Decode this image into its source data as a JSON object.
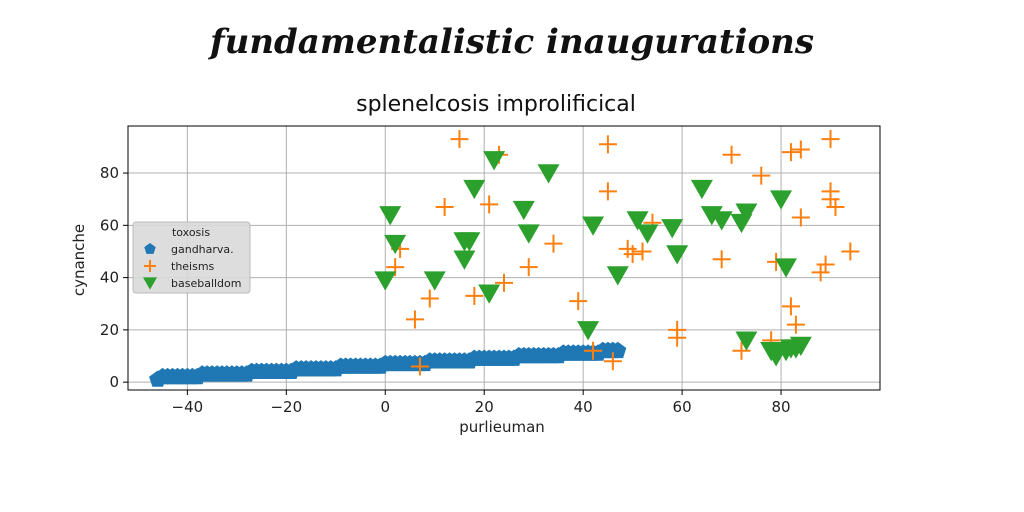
{
  "suptitle": "fundamentalistic inaugurations",
  "chart_data": {
    "type": "scatter",
    "title": "splenelcosis improlificical",
    "xlabel": "purlieuman",
    "ylabel": "cynanche",
    "xlim": [
      -52,
      100
    ],
    "ylim": [
      -3,
      98
    ],
    "xticks": [
      -40,
      -20,
      0,
      20,
      40,
      60,
      80
    ],
    "xtick_labels": [
      "−40",
      "−20",
      "0",
      "20",
      "40",
      "60",
      "80"
    ],
    "yticks": [
      0,
      20,
      40,
      60,
      80
    ],
    "ytick_labels": [
      "0",
      "20",
      "40",
      "60",
      "80"
    ],
    "grid": true,
    "legend": {
      "title": "toxosis",
      "placement": "center-left",
      "entries": [
        "gandharva.",
        "theisms",
        "baseballdom"
      ]
    },
    "series": [
      {
        "name": "gandharva.",
        "marker": "pentagon",
        "color": "#1f77b4",
        "points": [
          [
            -46,
            1
          ],
          [
            -45,
            2
          ],
          [
            -44,
            2
          ],
          [
            -43,
            2
          ],
          [
            -42,
            2
          ],
          [
            -41,
            2
          ],
          [
            -40,
            2
          ],
          [
            -39,
            2
          ],
          [
            -38,
            2
          ],
          [
            -37,
            3
          ],
          [
            -36,
            3
          ],
          [
            -35,
            3
          ],
          [
            -34,
            3
          ],
          [
            -33,
            3
          ],
          [
            -32,
            3
          ],
          [
            -31,
            3
          ],
          [
            -30,
            3
          ],
          [
            -29,
            3
          ],
          [
            -28,
            3
          ],
          [
            -27,
            4
          ],
          [
            -26,
            4
          ],
          [
            -25,
            4
          ],
          [
            -24,
            4
          ],
          [
            -23,
            4
          ],
          [
            -22,
            4
          ],
          [
            -21,
            4
          ],
          [
            -20,
            4
          ],
          [
            -19,
            4
          ],
          [
            -18,
            5
          ],
          [
            -17,
            5
          ],
          [
            -16,
            5
          ],
          [
            -15,
            5
          ],
          [
            -14,
            5
          ],
          [
            -13,
            5
          ],
          [
            -12,
            5
          ],
          [
            -11,
            5
          ],
          [
            -10,
            5
          ],
          [
            -9,
            6
          ],
          [
            -8,
            6
          ],
          [
            -7,
            6
          ],
          [
            -6,
            6
          ],
          [
            -5,
            6
          ],
          [
            -4,
            6
          ],
          [
            -3,
            6
          ],
          [
            -2,
            6
          ],
          [
            -1,
            6
          ],
          [
            0,
            7
          ],
          [
            1,
            7
          ],
          [
            2,
            7
          ],
          [
            3,
            7
          ],
          [
            4,
            7
          ],
          [
            5,
            7
          ],
          [
            6,
            7
          ],
          [
            7,
            7
          ],
          [
            8,
            7
          ],
          [
            9,
            8
          ],
          [
            10,
            8
          ],
          [
            11,
            8
          ],
          [
            12,
            8
          ],
          [
            13,
            8
          ],
          [
            14,
            8
          ],
          [
            15,
            8
          ],
          [
            16,
            8
          ],
          [
            17,
            8
          ],
          [
            18,
            9
          ],
          [
            19,
            9
          ],
          [
            20,
            9
          ],
          [
            21,
            9
          ],
          [
            22,
            9
          ],
          [
            23,
            9
          ],
          [
            24,
            9
          ],
          [
            25,
            9
          ],
          [
            26,
            9
          ],
          [
            27,
            10
          ],
          [
            28,
            10
          ],
          [
            29,
            10
          ],
          [
            30,
            10
          ],
          [
            31,
            10
          ],
          [
            32,
            10
          ],
          [
            33,
            10
          ],
          [
            34,
            10
          ],
          [
            35,
            10
          ],
          [
            36,
            11
          ],
          [
            37,
            11
          ],
          [
            38,
            11
          ],
          [
            39,
            11
          ],
          [
            40,
            11
          ],
          [
            41,
            11
          ],
          [
            42,
            11
          ],
          [
            43,
            11
          ],
          [
            44,
            12
          ],
          [
            45,
            12
          ],
          [
            46,
            12
          ],
          [
            47,
            12
          ]
        ]
      },
      {
        "name": "theisms",
        "marker": "plus",
        "color": "#ff7f0e",
        "points": [
          [
            15,
            93
          ],
          [
            45,
            91
          ],
          [
            23,
            87
          ],
          [
            70,
            87
          ],
          [
            82,
            88
          ],
          [
            84,
            89
          ],
          [
            90,
            93
          ],
          [
            76,
            79
          ],
          [
            45,
            73
          ],
          [
            90,
            73
          ],
          [
            90,
            70
          ],
          [
            91,
            67
          ],
          [
            12,
            67
          ],
          [
            21,
            68
          ],
          [
            84,
            63
          ],
          [
            54,
            61
          ],
          [
            3,
            51
          ],
          [
            49,
            51
          ],
          [
            50,
            49
          ],
          [
            52,
            50
          ],
          [
            94,
            50
          ],
          [
            34,
            53
          ],
          [
            2,
            44
          ],
          [
            29,
            44
          ],
          [
            24,
            38
          ],
          [
            18,
            33
          ],
          [
            9,
            32
          ],
          [
            39,
            31
          ],
          [
            68,
            47
          ],
          [
            79,
            46
          ],
          [
            88,
            42
          ],
          [
            89,
            45
          ],
          [
            82,
            29
          ],
          [
            83,
            22
          ],
          [
            6,
            24
          ],
          [
            59,
            20
          ],
          [
            59,
            17
          ],
          [
            42,
            12
          ],
          [
            72,
            12
          ],
          [
            78,
            16
          ],
          [
            46,
            8
          ],
          [
            7,
            6
          ]
        ]
      },
      {
        "name": "baseballdom",
        "marker": "triangle_down",
        "color": "#2ca02c",
        "points": [
          [
            22,
            85
          ],
          [
            33,
            80
          ],
          [
            18,
            74
          ],
          [
            64,
            74
          ],
          [
            80,
            70
          ],
          [
            1,
            64
          ],
          [
            28,
            66
          ],
          [
            42,
            60
          ],
          [
            51,
            62
          ],
          [
            53,
            57
          ],
          [
            58,
            59
          ],
          [
            66,
            64
          ],
          [
            68,
            62
          ],
          [
            72,
            61
          ],
          [
            73,
            65
          ],
          [
            16,
            54
          ],
          [
            17,
            54
          ],
          [
            2,
            53
          ],
          [
            16,
            47
          ],
          [
            29,
            57
          ],
          [
            59,
            49
          ],
          [
            47,
            41
          ],
          [
            10,
            39
          ],
          [
            0,
            39
          ],
          [
            21,
            34
          ],
          [
            81,
            44
          ],
          [
            41,
            20
          ],
          [
            73,
            16
          ],
          [
            78,
            12
          ],
          [
            79,
            10
          ],
          [
            81,
            12
          ],
          [
            82,
            13
          ],
          [
            83,
            13
          ],
          [
            84,
            14
          ]
        ]
      }
    ]
  }
}
